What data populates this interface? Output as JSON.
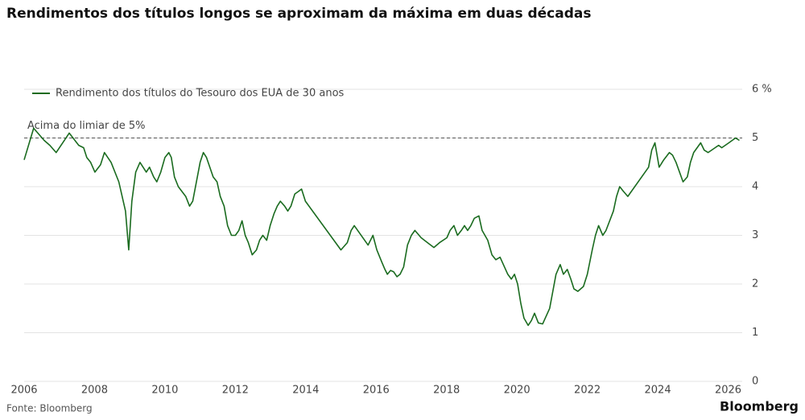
{
  "chart_data": {
    "type": "line",
    "title": "Rendimentos dos títulos longos se aproximam da máxima em duas décadas",
    "source": "Fonte: Bloomberg",
    "brand": "Bloomberg",
    "x": [
      2006.0,
      2006.27,
      2006.57,
      2006.73,
      2006.91,
      2007.28,
      2007.55,
      2007.69,
      2007.78,
      2007.89,
      2008.01,
      2008.17,
      2008.28,
      2008.47,
      2008.69,
      2008.88,
      2008.97,
      2009.06,
      2009.17,
      2009.29,
      2009.47,
      2009.56,
      2009.68,
      2009.77,
      2009.88,
      2010.0,
      2010.11,
      2010.18,
      2010.27,
      2010.38,
      2010.59,
      2010.7,
      2010.79,
      2011.0,
      2011.09,
      2011.18,
      2011.37,
      2011.48,
      2011.57,
      2011.68,
      2011.78,
      2011.89,
      2012.0,
      2012.1,
      2012.19,
      2012.28,
      2012.37,
      2012.48,
      2012.6,
      2012.69,
      2012.78,
      2012.89,
      2012.99,
      2013.1,
      2013.19,
      2013.28,
      2013.4,
      2013.49,
      2013.58,
      2013.69,
      2013.79,
      2013.88,
      2013.99,
      2015.0,
      2015.18,
      2015.29,
      2015.38,
      2015.77,
      2015.91,
      2016.02,
      2016.16,
      2016.25,
      2016.32,
      2016.41,
      2016.5,
      2016.59,
      2016.68,
      2016.78,
      2016.89,
      2017.0,
      2017.1,
      2017.28,
      2017.46,
      2017.64,
      2017.8,
      2018.01,
      2018.1,
      2018.21,
      2018.31,
      2018.42,
      2018.51,
      2018.6,
      2018.69,
      2018.79,
      2018.92,
      2019.01,
      2019.17,
      2019.29,
      2019.4,
      2019.52,
      2019.74,
      2019.84,
      2019.93,
      2020.02,
      2020.11,
      2020.2,
      2020.32,
      2020.41,
      2020.5,
      2020.61,
      2020.73,
      2020.93,
      2021.11,
      2021.23,
      2021.32,
      2021.43,
      2021.53,
      2021.62,
      2021.73,
      2021.89,
      2022.0,
      2022.14,
      2022.23,
      2022.32,
      2022.44,
      2022.53,
      2022.74,
      2022.83,
      2022.92,
      2023.03,
      2023.15,
      2023.74,
      2023.83,
      2023.92,
      2024.04,
      2024.17,
      2024.33,
      2024.42,
      2024.52,
      2024.72,
      2024.84,
      2024.93,
      2025.02,
      2025.22,
      2025.32,
      2025.43,
      2025.63,
      2025.73,
      2025.82,
      2026.02,
      2026.21,
      2026.32
    ],
    "series": [
      {
        "name": "Rendimento dos títulos do Tesouro dos EUA de 30 anos",
        "color": "#1a6b1f",
        "values": [
          4.55,
          5.2,
          4.95,
          4.85,
          4.7,
          5.1,
          4.85,
          4.8,
          4.6,
          4.5,
          4.3,
          4.45,
          4.7,
          4.5,
          4.1,
          3.5,
          2.7,
          3.7,
          4.3,
          4.5,
          4.3,
          4.4,
          4.2,
          4.1,
          4.3,
          4.6,
          4.7,
          4.6,
          4.2,
          4.0,
          3.8,
          3.6,
          3.7,
          4.5,
          4.7,
          4.6,
          4.2,
          4.1,
          3.8,
          3.6,
          3.2,
          3.0,
          3.0,
          3.1,
          3.3,
          3.0,
          2.85,
          2.6,
          2.7,
          2.9,
          3.0,
          2.9,
          3.2,
          3.45,
          3.6,
          3.7,
          3.6,
          3.5,
          3.6,
          3.85,
          3.9,
          3.95,
          3.7,
          2.7,
          2.85,
          3.1,
          3.2,
          2.8,
          3.0,
          2.7,
          2.45,
          2.3,
          2.2,
          2.28,
          2.25,
          2.15,
          2.2,
          2.35,
          2.8,
          3.0,
          3.1,
          2.95,
          2.85,
          2.75,
          2.85,
          2.95,
          3.1,
          3.2,
          3.0,
          3.1,
          3.2,
          3.1,
          3.2,
          3.35,
          3.4,
          3.1,
          2.9,
          2.6,
          2.5,
          2.55,
          2.2,
          2.1,
          2.2,
          2.0,
          1.6,
          1.3,
          1.15,
          1.25,
          1.4,
          1.2,
          1.18,
          1.5,
          2.2,
          2.4,
          2.2,
          2.3,
          2.1,
          1.9,
          1.85,
          1.95,
          2.2,
          2.7,
          3.0,
          3.2,
          3.0,
          3.1,
          3.5,
          3.8,
          4.0,
          3.9,
          3.8,
          4.4,
          4.75,
          4.9,
          4.4,
          4.55,
          4.7,
          4.65,
          4.5,
          4.1,
          4.2,
          4.5,
          4.7,
          4.9,
          4.75,
          4.7,
          4.8,
          4.85,
          4.8,
          4.9,
          5.0,
          4.95
        ]
      }
    ],
    "xlim": [
      2006,
      2026.4
    ],
    "xticks": [
      2006,
      2008,
      2010,
      2012,
      2014,
      2016,
      2018,
      2020,
      2022,
      2024,
      2026
    ],
    "ylim": [
      0,
      6
    ],
    "yticks": [
      0,
      1,
      2,
      3,
      4,
      5,
      {
        "value": 6,
        "label": "6 %"
      }
    ],
    "grid": true,
    "threshold": 5,
    "threshold_label": "Acima do limiar de 5%",
    "legend": "top-left"
  }
}
